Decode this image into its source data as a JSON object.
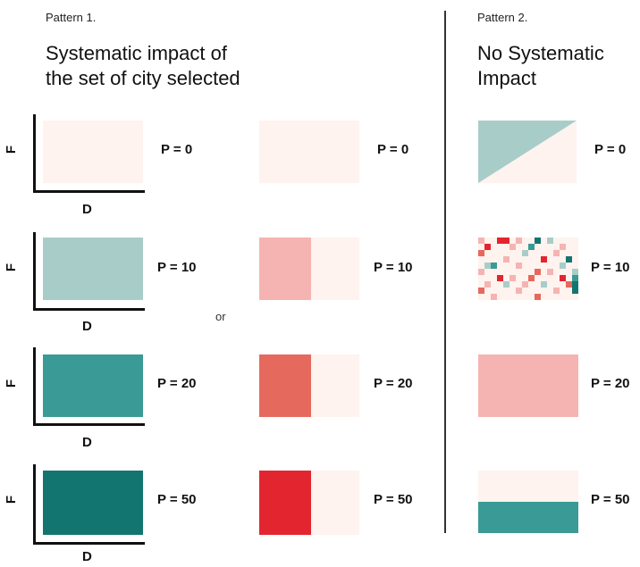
{
  "pattern1": {
    "label": "Pattern 1.",
    "title_lines": [
      "Systematic impact of",
      "the set of city selected"
    ]
  },
  "pattern2": {
    "label": "Pattern 2.",
    "title_lines": [
      "No Systematic",
      "Impact"
    ]
  },
  "axes": {
    "y": "F",
    "x": "D"
  },
  "or_label": "or",
  "p_labels": [
    "P = 0",
    "P = 10",
    "P = 20",
    "P = 50"
  ],
  "colors": {
    "cream": "#fef3ee",
    "teal_light": "#a8cdc9",
    "teal_mid": "#3a9a95",
    "teal_dark": "#137570",
    "pink_light": "#f5b4b2",
    "salmon": "#e5695d",
    "red": "#e32530"
  },
  "mosaic_cells": [
    {
      "c": 0,
      "r": 0,
      "color": "#f5b4b2"
    },
    {
      "c": 3,
      "r": 0,
      "color": "#e32530"
    },
    {
      "c": 4,
      "r": 0,
      "color": "#e32530"
    },
    {
      "c": 6,
      "r": 0,
      "color": "#f5b4b2"
    },
    {
      "c": 9,
      "r": 0,
      "color": "#137570"
    },
    {
      "c": 11,
      "r": 0,
      "color": "#a8cdc9"
    },
    {
      "c": 1,
      "r": 1,
      "color": "#e32530"
    },
    {
      "c": 5,
      "r": 1,
      "color": "#f5b4b2"
    },
    {
      "c": 8,
      "r": 1,
      "color": "#3a9a95"
    },
    {
      "c": 13,
      "r": 1,
      "color": "#f5b4b2"
    },
    {
      "c": 0,
      "r": 2,
      "color": "#e5695d"
    },
    {
      "c": 7,
      "r": 2,
      "color": "#a8cdc9"
    },
    {
      "c": 12,
      "r": 2,
      "color": "#f5b4b2"
    },
    {
      "c": 4,
      "r": 3,
      "color": "#f5b4b2"
    },
    {
      "c": 10,
      "r": 3,
      "color": "#e32530"
    },
    {
      "c": 14,
      "r": 3,
      "color": "#137570"
    },
    {
      "c": 1,
      "r": 4,
      "color": "#a8cdc9"
    },
    {
      "c": 2,
      "r": 4,
      "color": "#3a9a95"
    },
    {
      "c": 6,
      "r": 4,
      "color": "#f5b4b2"
    },
    {
      "c": 13,
      "r": 4,
      "color": "#a8cdc9"
    },
    {
      "c": 0,
      "r": 5,
      "color": "#f5b4b2"
    },
    {
      "c": 9,
      "r": 5,
      "color": "#e5695d"
    },
    {
      "c": 11,
      "r": 5,
      "color": "#f5b4b2"
    },
    {
      "c": 15,
      "r": 5,
      "color": "#a8cdc9"
    },
    {
      "c": 3,
      "r": 6,
      "color": "#e32530"
    },
    {
      "c": 5,
      "r": 6,
      "color": "#f5b4b2"
    },
    {
      "c": 8,
      "r": 6,
      "color": "#e5695d"
    },
    {
      "c": 13,
      "r": 6,
      "color": "#e32530"
    },
    {
      "c": 15,
      "r": 6,
      "color": "#3a9a95"
    },
    {
      "c": 1,
      "r": 7,
      "color": "#f5b4b2"
    },
    {
      "c": 4,
      "r": 7,
      "color": "#a8cdc9"
    },
    {
      "c": 7,
      "r": 7,
      "color": "#f5b4b2"
    },
    {
      "c": 10,
      "r": 7,
      "color": "#a8cdc9"
    },
    {
      "c": 14,
      "r": 7,
      "color": "#e5695d"
    },
    {
      "c": 15,
      "r": 7,
      "color": "#137570"
    },
    {
      "c": 0,
      "r": 8,
      "color": "#e5695d"
    },
    {
      "c": 6,
      "r": 8,
      "color": "#f5b4b2"
    },
    {
      "c": 12,
      "r": 8,
      "color": "#f5b4b2"
    },
    {
      "c": 15,
      "r": 8,
      "color": "#137570"
    },
    {
      "c": 2,
      "r": 9,
      "color": "#f5b4b2"
    },
    {
      "c": 9,
      "r": 9,
      "color": "#e5695d"
    }
  ]
}
